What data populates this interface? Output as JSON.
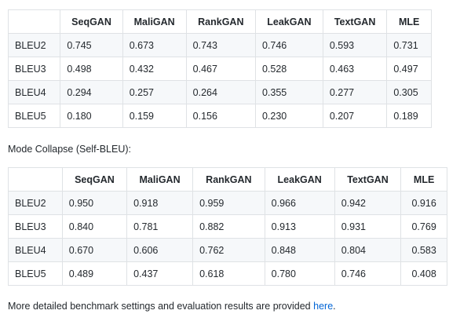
{
  "table1": {
    "headers": [
      "",
      "SeqGAN",
      "MaliGAN",
      "RankGAN",
      "LeakGAN",
      "TextGAN",
      "MLE"
    ],
    "rows": [
      [
        "BLEU2",
        "0.745",
        "0.673",
        "0.743",
        "0.746",
        "0.593",
        "0.731"
      ],
      [
        "BLEU3",
        "0.498",
        "0.432",
        "0.467",
        "0.528",
        "0.463",
        "0.497"
      ],
      [
        "BLEU4",
        "0.294",
        "0.257",
        "0.264",
        "0.355",
        "0.277",
        "0.305"
      ],
      [
        "BLEU5",
        "0.180",
        "0.159",
        "0.156",
        "0.230",
        "0.207",
        "0.189"
      ]
    ]
  },
  "section2": {
    "title": "Mode Collapse (Self-BLEU):"
  },
  "table2": {
    "headers": [
      "",
      "SeqGAN",
      "MaliGAN",
      "RankGAN",
      "LeakGAN",
      "TextGAN",
      "MLE"
    ],
    "rows": [
      [
        "BLEU2",
        "0.950",
        "0.918",
        "0.959",
        "0.966",
        "0.942",
        "0.916"
      ],
      [
        "BLEU3",
        "0.840",
        "0.781",
        "0.882",
        "0.913",
        "0.931",
        "0.769"
      ],
      [
        "BLEU4",
        "0.670",
        "0.606",
        "0.762",
        "0.848",
        "0.804",
        "0.583"
      ],
      [
        "BLEU5",
        "0.489",
        "0.437",
        "0.618",
        "0.780",
        "0.746",
        "0.408"
      ]
    ]
  },
  "footer": {
    "text": "More detailed benchmark settings and evaluation results are provided ",
    "link_label": "here",
    "trailing": "."
  }
}
